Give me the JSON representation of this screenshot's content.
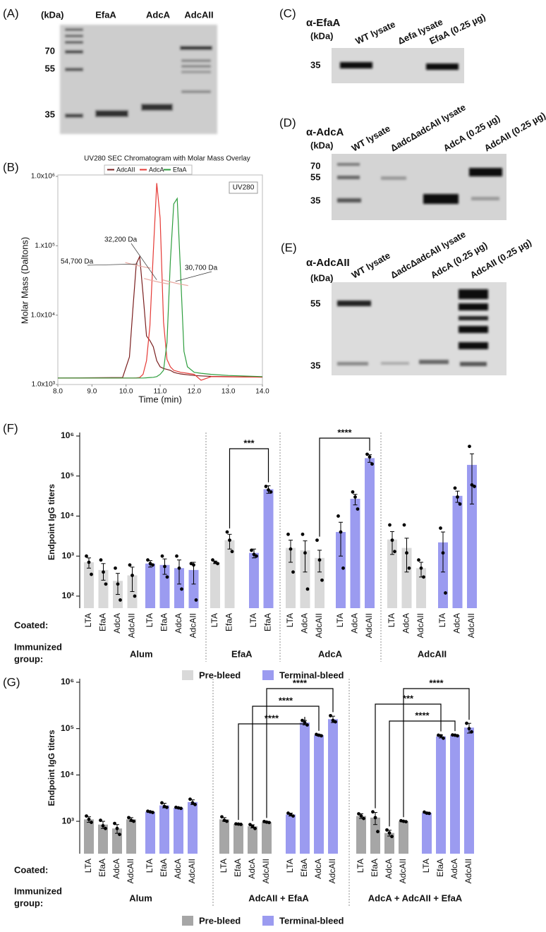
{
  "panels": {
    "A": {
      "label": "(A)",
      "unit": "(kDa)",
      "lanes": [
        "EfaA",
        "AdcA",
        "AdcAII"
      ],
      "markers": [
        70,
        55,
        35
      ]
    },
    "C": {
      "label": "(C)",
      "antibody": "α-EfaA",
      "unit": "(kDa)",
      "lanes": [
        "WT lysate",
        "Δefa lysate",
        "EfaA (0.25 µg)"
      ],
      "markers": [
        35
      ]
    },
    "D": {
      "label": "(D)",
      "antibody": "α-AdcA",
      "unit": "(kDa)",
      "lanes": [
        "WT lysate",
        "ΔadcΔadcAII lysate",
        "AdcA (0.25 µg)",
        "AdcAII  (0.25 µg)"
      ],
      "markers": [
        70,
        55,
        35
      ]
    },
    "E": {
      "label": "(E)",
      "antibody": "α-AdcAII",
      "unit": "(kDa)",
      "lanes": [
        "WT lysate",
        "ΔadcΔadcAII lysate",
        "AdcA (0.25 µg)",
        "AdcAII (0.25 µg)"
      ],
      "markers": [
        55,
        35
      ]
    }
  },
  "chart_data": [
    {
      "type": "line",
      "panel": "(B)",
      "title": "UV280 SEC Chromatogram with Molar Mass Overlay",
      "box_label": "UV280",
      "x_label": "Time (min)",
      "y_label": "Molar Mass (Daltons)",
      "log_scale": true,
      "x": [
        8.0,
        9.9,
        10.1,
        10.2,
        10.3,
        10.4,
        10.5,
        10.6,
        10.7,
        10.8,
        10.9,
        11.0,
        11.1,
        11.2,
        11.3,
        11.4,
        11.5,
        11.6,
        11.7,
        11.8,
        12.0,
        12.2,
        12.5,
        13.0,
        14.0
      ],
      "series": [
        {
          "name": "AdcAII",
          "color": "#7a1f1f",
          "values": [
            1240,
            1260,
            2500,
            12000,
            55000,
            70000,
            20000,
            5000,
            4300,
            3500,
            2200,
            1800,
            1700,
            1650,
            1600,
            1500,
            1450,
            1420,
            1400,
            1380,
            1350,
            1330,
            1310,
            1300,
            1280
          ]
        },
        {
          "name": "AdcA",
          "color": "#e53935",
          "values": [
            1240,
            1240,
            1240,
            1240,
            1245,
            1260,
            1400,
            2200,
            7000,
            80000,
            800000,
            250000,
            8000,
            2300,
            1800,
            1600,
            1550,
            1500,
            1480,
            1450,
            1400,
            1150,
            1300,
            1290,
            1280
          ]
        },
        {
          "name": "EfaA",
          "color": "#2e9e3e",
          "values": [
            1240,
            1240,
            1240,
            1240,
            1240,
            1240,
            1240,
            1250,
            1260,
            1270,
            1300,
            1400,
            1600,
            4000,
            60000,
            400000,
            480000,
            40000,
            3000,
            1800,
            1500,
            1450,
            1400,
            1350,
            1300
          ]
        }
      ],
      "annotations": [
        {
          "text": "54,700 Da",
          "x": 10.35,
          "y": 54700
        },
        {
          "text": "32,200 Da",
          "x": 10.9,
          "y": 32200
        },
        {
          "text": "30,700 Da",
          "x": 11.45,
          "y": 30700
        }
      ],
      "xlim": [
        8.0,
        14.0
      ],
      "xticks": [
        {
          "value": 8,
          "label": "8.0"
        },
        {
          "value": 9,
          "label": "9.0"
        },
        {
          "value": 10,
          "label": "10.0"
        },
        {
          "value": 11,
          "label": "11.0"
        },
        {
          "value": 12,
          "label": "12.0"
        },
        {
          "value": 13,
          "label": "13.0"
        },
        {
          "value": 14,
          "label": "14.0"
        }
      ],
      "ylim": [
        1000,
        1000000
      ],
      "yticks": [
        {
          "value": 1000,
          "label": "1.0x10³"
        },
        {
          "value": 10000,
          "label": "1.0x10⁴"
        },
        {
          "value": 100000,
          "label": "1.x10⁵"
        },
        {
          "value": 1000000,
          "label": "1.0x10⁶"
        }
      ]
    },
    {
      "type": "bar",
      "panel": "(F)",
      "y_label": "Endpoint IgG titers",
      "log_scale": true,
      "coated_label": "Coated:",
      "group_label": [
        "Immunized",
        "group:"
      ],
      "ylim": [
        50,
        1000000
      ],
      "yticks": [
        {
          "value": 100,
          "label": "10²"
        },
        {
          "value": 1000,
          "label": "10³"
        },
        {
          "value": 10000,
          "label": "10⁴"
        },
        {
          "value": 100000,
          "label": "10⁵"
        },
        {
          "value": 1000000,
          "label": "10⁶"
        }
      ],
      "series": [
        {
          "name": "Pre-bleed",
          "color": "#d9d9d9"
        },
        {
          "name": "Terminal-bleed",
          "color": "#9b9bf0"
        }
      ],
      "significance": [
        "***",
        "****"
      ],
      "groups": [
        {
          "name": "Alum",
          "bars": [
            {
              "categories": [
                "LTA",
                "EfaA",
                "AdcA",
                "AdcAII"
              ],
              "values": [
                700,
                450,
                240,
                330
              ],
              "errors": [
                200,
                200,
                130,
                200
              ],
              "points": [
                [
                  1000,
                  700,
                  350
                ],
                [
                  800,
                  400,
                  200
                ],
                [
                  500,
                  200,
                  80
                ],
                [
                  600,
                  330,
                  100
                ]
              ]
            },
            {
              "categories": [
                "LTA",
                "EfaA",
                "AdcA",
                "AdcAII"
              ],
              "values": [
                650,
                600,
                500,
                450
              ],
              "errors": [
                120,
                250,
                300,
                250
              ],
              "points": [
                [
                  800,
                  650,
                  600
                ],
                [
                  1000,
                  550,
                  300
                ],
                [
                  1000,
                  500,
                  150
                ],
                [
                  650,
                  600,
                  80
                ]
              ]
            }
          ]
        },
        {
          "name": "EfaA",
          "bars": [
            {
              "categories": [
                "LTA",
                "EfaA"
              ],
              "values": [
                700,
                2500
              ],
              "errors": [
                50,
                1000
              ],
              "points": [
                [
                  800,
                  700,
                  650
                ],
                [
                  4000,
                  2500,
                  1300
                ]
              ]
            },
            {
              "categories": [
                "LTA",
                "EfaA"
              ],
              "values": [
                1200,
                47000
              ],
              "errors": [
                300,
                10000
              ],
              "points": [
                [
                  1400,
                  1100,
                  1000
                ],
                [
                  55000,
                  45000,
                  40000
                ]
              ]
            }
          ]
        },
        {
          "name": "AdcA",
          "bars": [
            {
              "categories": [
                "LTA",
                "AdcA",
                "AdcAII"
              ],
              "values": [
                1600,
                1400,
                900
              ],
              "errors": [
                900,
                1000,
                500
              ],
              "points": [
                [
                  3500,
                  1500,
                  400
                ],
                [
                  3500,
                  1200,
                  150
                ],
                [
                  2500,
                  800,
                  250
                ]
              ]
            },
            {
              "categories": [
                "LTA",
                "AdcA",
                "AdcAII"
              ],
              "values": [
                4000,
                27000,
                280000
              ],
              "errors": [
                3000,
                8000,
                60000
              ],
              "points": [
                [
                  10000,
                  4000,
                  500
                ],
                [
                  40000,
                  30000,
                  15000
                ],
                [
                  350000,
                  300000,
                  200000
                ]
              ]
            }
          ]
        },
        {
          "name": "AdcAII",
          "bars": [
            {
              "categories": [
                "LTA",
                "AdcA",
                "AdcAII"
              ],
              "values": [
                2600,
                1600,
                500
              ],
              "errors": [
                1500,
                1200,
                200
              ],
              "points": [
                [
                  6000,
                  2500,
                  1300
                ],
                [
                  6000,
                  1200,
                  500
                ],
                [
                  800,
                  500,
                  300
                ]
              ]
            },
            {
              "categories": [
                "LTA",
                "AdcA",
                "AdcAII"
              ],
              "values": [
                2200,
                32000,
                190000
              ],
              "errors": [
                1800,
                10000,
                170000
              ],
              "points": [
                [
                  5000,
                  1200,
                  120
                ],
                [
                  50000,
                  30000,
                  20000
                ],
                [
                  550000,
                  60000,
                  55000
                ]
              ]
            }
          ]
        }
      ]
    },
    {
      "type": "bar",
      "panel": "(G)",
      "y_label": "Endpoint IgG titers",
      "log_scale": true,
      "coated_label": "Coated:",
      "group_label": [
        "Immunized",
        "group:"
      ],
      "ylim": [
        200,
        1000000
      ],
      "yticks": [
        {
          "value": 1000,
          "label": "10³"
        },
        {
          "value": 10000,
          "label": "10⁴"
        },
        {
          "value": 100000,
          "label": "10⁵"
        },
        {
          "value": 1000000,
          "label": "10⁶"
        }
      ],
      "series": [
        {
          "name": "Pre-bleed",
          "color": "#a6a6a6"
        },
        {
          "name": "Terminal-bleed",
          "color": "#9b9bf0"
        }
      ],
      "significance": [
        "****",
        "****",
        "****",
        "****",
        "***",
        "****"
      ],
      "groups": [
        {
          "name": "Alum",
          "bars": [
            {
              "categories": [
                "LTA",
                "EfaA",
                "AdcA",
                "AdcAII"
              ],
              "values": [
                1100,
                850,
                700,
                1100
              ],
              "errors": [
                150,
                150,
                150,
                100
              ],
              "points": [
                [
                  1300,
                  1100,
                  950
                ],
                [
                  1050,
                  800,
                  700
                ],
                [
                  900,
                  700,
                  520
                ],
                [
                  1200,
                  1050,
                  1000
                ]
              ]
            },
            {
              "categories": [
                "LTA",
                "EfaA",
                "AdcA",
                "AdcAII"
              ],
              "values": [
                1600,
                2200,
                1950,
                2600
              ],
              "errors": [
                50,
                250,
                50,
                300
              ],
              "points": [
                [
                  1650,
                  1600,
                  1550
                ],
                [
                  2500,
                  2100,
                  2000
                ],
                [
                  2000,
                  1950,
                  1900
                ],
                [
                  3000,
                  2500,
                  2300
                ]
              ]
            }
          ]
        },
        {
          "name": "AdcAII + EfaA",
          "bars": [
            {
              "categories": [
                "LTA",
                "EfaA",
                "AdcA",
                "AdcAII"
              ],
              "values": [
                1100,
                870,
                780,
                960
              ],
              "errors": [
                100,
                30,
                60,
                30
              ],
              "points": [
                [
                  1250,
                  1050,
                  1000
                ],
                [
                  880,
                  870,
                  860
                ],
                [
                  850,
                  780,
                  700
                ],
                [
                  990,
                  960,
                  940
                ]
              ]
            },
            {
              "categories": [
                "LTA",
                "EfaA",
                "AdcA",
                "AdcAII"
              ],
              "values": [
                1400,
                135000,
                72000,
                160000
              ],
              "errors": [
                100,
                15000,
                3000,
                25000
              ],
              "points": [
                [
                  1500,
                  1400,
                  1300
                ],
                [
                  150000,
                  135000,
                  120000
                ],
                [
                  75000,
                  72000,
                  70000
                ],
                [
                  190000,
                  150000,
                  140000
                ]
              ]
            }
          ]
        },
        {
          "name": "AdcA + AdcAII + EfaA",
          "bars": [
            {
              "categories": [
                "LTA",
                "EfaA",
                "AdcA",
                "AdcAII"
              ],
              "values": [
                1300,
                1200,
                560,
                1000
              ],
              "errors": [
                150,
                350,
                80,
                30
              ],
              "points": [
                [
                  1450,
                  1300,
                  1150
                ],
                [
                  1600,
                  1200,
                  600
                ],
                [
                  650,
                  560,
                  470
                ],
                [
                  1030,
                  1000,
                  980
                ]
              ]
            },
            {
              "categories": [
                "LTA",
                "EfaA",
                "AdcA",
                "AdcAII"
              ],
              "values": [
                1520,
                68000,
                72000,
                105000
              ],
              "errors": [
                50,
                5000,
                2000,
                25000
              ],
              "points": [
                [
                  1580,
                  1500,
                  1480
                ],
                [
                  72000,
                  70000,
                  62000
                ],
                [
                  73000,
                  72000,
                  70000
                ],
                [
                  130000,
                  100000,
                  85000
                ]
              ]
            }
          ]
        }
      ]
    }
  ]
}
